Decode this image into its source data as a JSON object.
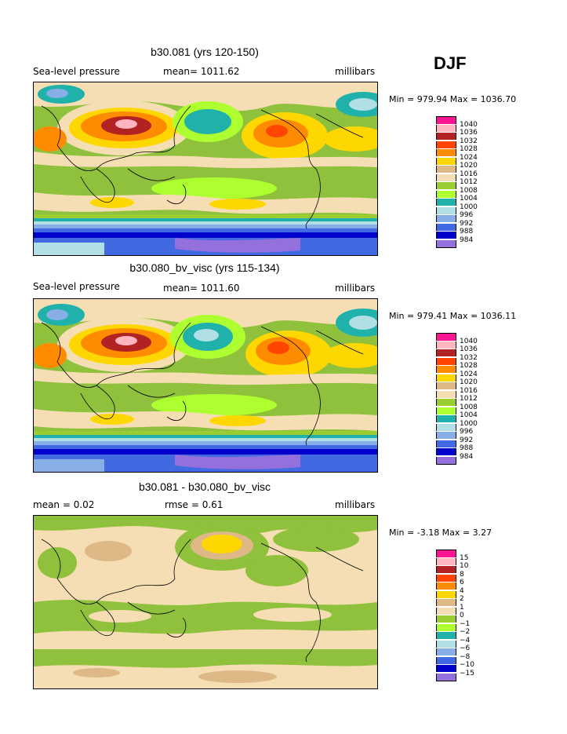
{
  "season": "DJF",
  "palette_pressure": [
    "#ff1493",
    "#ffb6c1",
    "#b22222",
    "#ff4500",
    "#ff8c00",
    "#ffd700",
    "#deb887",
    "#f5deb3",
    "#9acd32",
    "#adff2f",
    "#20b2aa",
    "#b0e0e6",
    "#87aee6",
    "#4169e1",
    "#0000cd",
    "#9370db"
  ],
  "palette_diff": [
    "#ff1493",
    "#ffb6c1",
    "#b22222",
    "#ff4500",
    "#ff8c00",
    "#ffd700",
    "#deb887",
    "#f5deb3",
    "#9acd32",
    "#adff2f",
    "#20b2aa",
    "#b0e0e6",
    "#87aee6",
    "#4169e1",
    "#0000cd",
    "#9370db"
  ],
  "panels": [
    {
      "title": "b30.081 (yrs 120-150)",
      "left_label": "Sea-level pressure",
      "center_label": "mean=  1011.62",
      "right_label": "millibars",
      "minmax": "Min = 979.94  Max = 1036.70",
      "legend_labels": [
        "1040",
        "1036",
        "1032",
        "1028",
        "1024",
        "1020",
        "1016",
        "1012",
        "1008",
        "1004",
        "1000",
        "996",
        "992",
        "988",
        "984"
      ]
    },
    {
      "title": "b30.080_bv_visc (yrs 115-134)",
      "left_label": "Sea-level pressure",
      "center_label": "mean=  1011.60",
      "right_label": "millibars",
      "minmax": "Min = 979.41  Max = 1036.11",
      "legend_labels": [
        "1040",
        "1036",
        "1032",
        "1028",
        "1024",
        "1020",
        "1016",
        "1012",
        "1008",
        "1004",
        "1000",
        "996",
        "992",
        "988",
        "984"
      ]
    },
    {
      "title": "b30.081 - b30.080_bv_visc",
      "left_label": "mean =     0.02",
      "center_label": "rmse =     0.61",
      "right_label": "millibars",
      "minmax": "Min =   -3.18  Max =     3.27",
      "legend_labels": [
        "15",
        "10",
        "8",
        "6",
        "4",
        "2",
        "1",
        "0",
        "−1",
        "−2",
        "−4",
        "−6",
        "−8",
        "−10",
        "−15"
      ]
    }
  ],
  "chart_data": [
    {
      "type": "heatmap",
      "title": "b30.081 (yrs 120-150)",
      "variable": "Sea-level pressure",
      "units": "millibars",
      "mean": 1011.62,
      "min": 979.94,
      "max": 1036.7,
      "contour_levels": [
        984,
        988,
        992,
        996,
        1000,
        1004,
        1008,
        1012,
        1016,
        1020,
        1024,
        1028,
        1032,
        1036,
        1040
      ]
    },
    {
      "type": "heatmap",
      "title": "b30.080_bv_visc (yrs 115-134)",
      "variable": "Sea-level pressure",
      "units": "millibars",
      "mean": 1011.6,
      "min": 979.41,
      "max": 1036.11,
      "contour_levels": [
        984,
        988,
        992,
        996,
        1000,
        1004,
        1008,
        1012,
        1016,
        1020,
        1024,
        1028,
        1032,
        1036,
        1040
      ]
    },
    {
      "type": "heatmap",
      "title": "b30.081 - b30.080_bv_visc",
      "units": "millibars",
      "mean": 0.02,
      "rmse": 0.61,
      "min": -3.18,
      "max": 3.27,
      "contour_levels": [
        -15,
        -10,
        -8,
        -6,
        -4,
        -2,
        -1,
        0,
        1,
        2,
        4,
        6,
        8,
        10,
        15
      ]
    }
  ]
}
